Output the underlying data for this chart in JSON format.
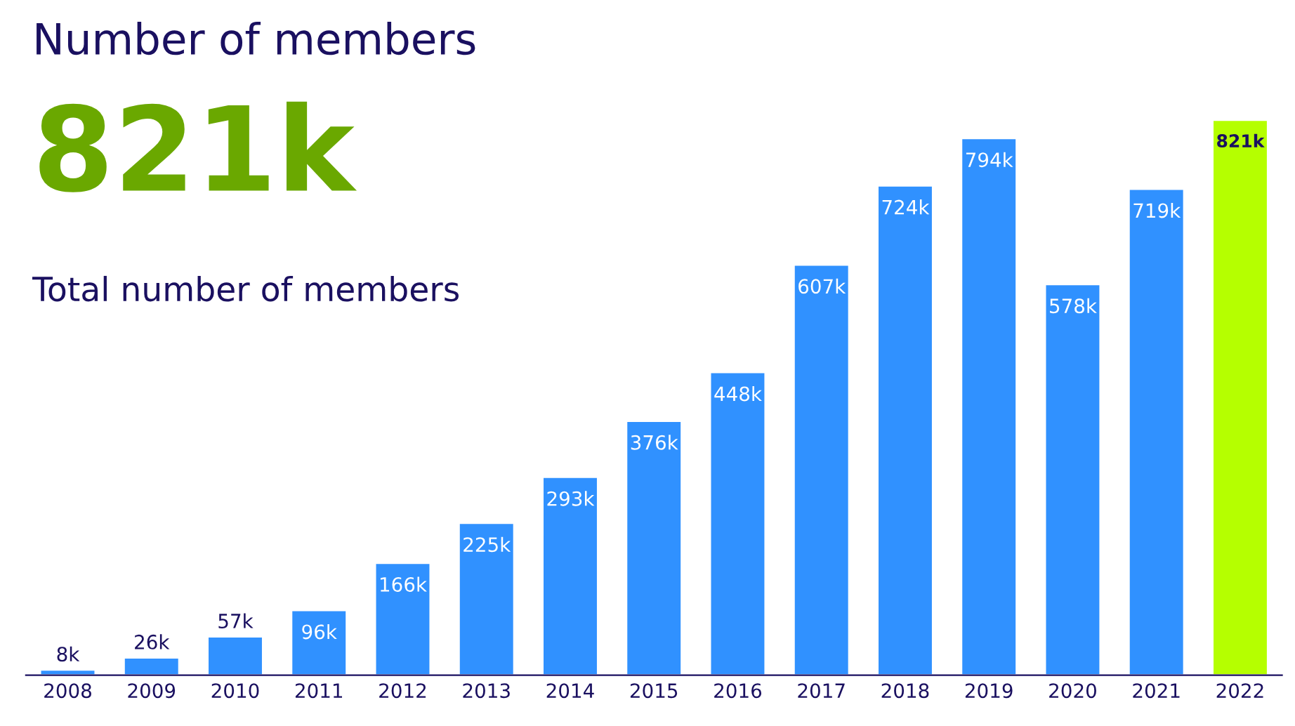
{
  "chart_data": {
    "type": "bar",
    "title": "Number of members",
    "annotations": [
      "821k",
      "Total number of members"
    ],
    "categories": [
      "2008",
      "2009",
      "2010",
      "2011",
      "2012",
      "2013",
      "2014",
      "2015",
      "2016",
      "2017",
      "2018",
      "2019",
      "2020",
      "2021",
      "2022"
    ],
    "values": [
      8,
      26,
      57,
      96,
      166,
      225,
      293,
      376,
      448,
      607,
      724,
      794,
      578,
      719,
      821
    ],
    "value_labels": [
      "8k",
      "26k",
      "57k",
      "96k",
      "166k",
      "225k",
      "293k",
      "376k",
      "448k",
      "607k",
      "724k",
      "794k",
      "578k",
      "719k",
      "821k"
    ],
    "colors": [
      "#3091ff",
      "#3091ff",
      "#3091ff",
      "#3091ff",
      "#3091ff",
      "#3091ff",
      "#3091ff",
      "#3091ff",
      "#3091ff",
      "#3091ff",
      "#3091ff",
      "#3091ff",
      "#3091ff",
      "#3091ff",
      "#b5ff00"
    ],
    "grid": false
  }
}
